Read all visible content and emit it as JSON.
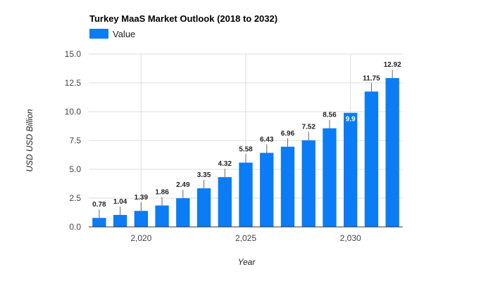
{
  "chart_data": {
    "type": "bar",
    "title": "Turkey MaaS Market Outlook (2018 to 2032)",
    "xlabel": "Year",
    "ylabel": "USD USD Billion",
    "legend": {
      "entries": [
        "Value"
      ],
      "placement": "top-left"
    },
    "series": [
      {
        "name": "Value",
        "color": "#0a7cf5",
        "x": [
          2018,
          2019,
          2020,
          2021,
          2022,
          2023,
          2024,
          2025,
          2026,
          2027,
          2028,
          2029,
          2030,
          2031,
          2032
        ],
        "values": [
          0.78,
          1.04,
          1.39,
          1.86,
          2.49,
          3.35,
          4.32,
          5.58,
          6.43,
          6.96,
          7.52,
          8.56,
          9.9,
          11.75,
          12.92
        ],
        "labels": [
          "0.78",
          "1.04",
          "1.39",
          "1.86",
          "2.49",
          "3.35",
          "4.32",
          "5.58",
          "6.43",
          "6.96",
          "7.52",
          "8.56",
          "9.9",
          "11.75",
          "12.92"
        ]
      }
    ],
    "ylim": [
      0,
      15
    ],
    "xlim": [
      2017.5,
      2032.5
    ],
    "y_ticks": [
      0,
      2.5,
      5,
      7.5,
      10,
      12.5,
      15
    ],
    "y_tick_labels": [
      "0.0",
      "2.5",
      "5.0",
      "7.5",
      "10.0",
      "12.5",
      "15.0"
    ],
    "x_ticks": [
      2020,
      2025,
      2030
    ],
    "x_tick_labels": [
      "2,020",
      "2,025",
      "2,030"
    ],
    "grid": true,
    "label_inside_index": 12
  }
}
